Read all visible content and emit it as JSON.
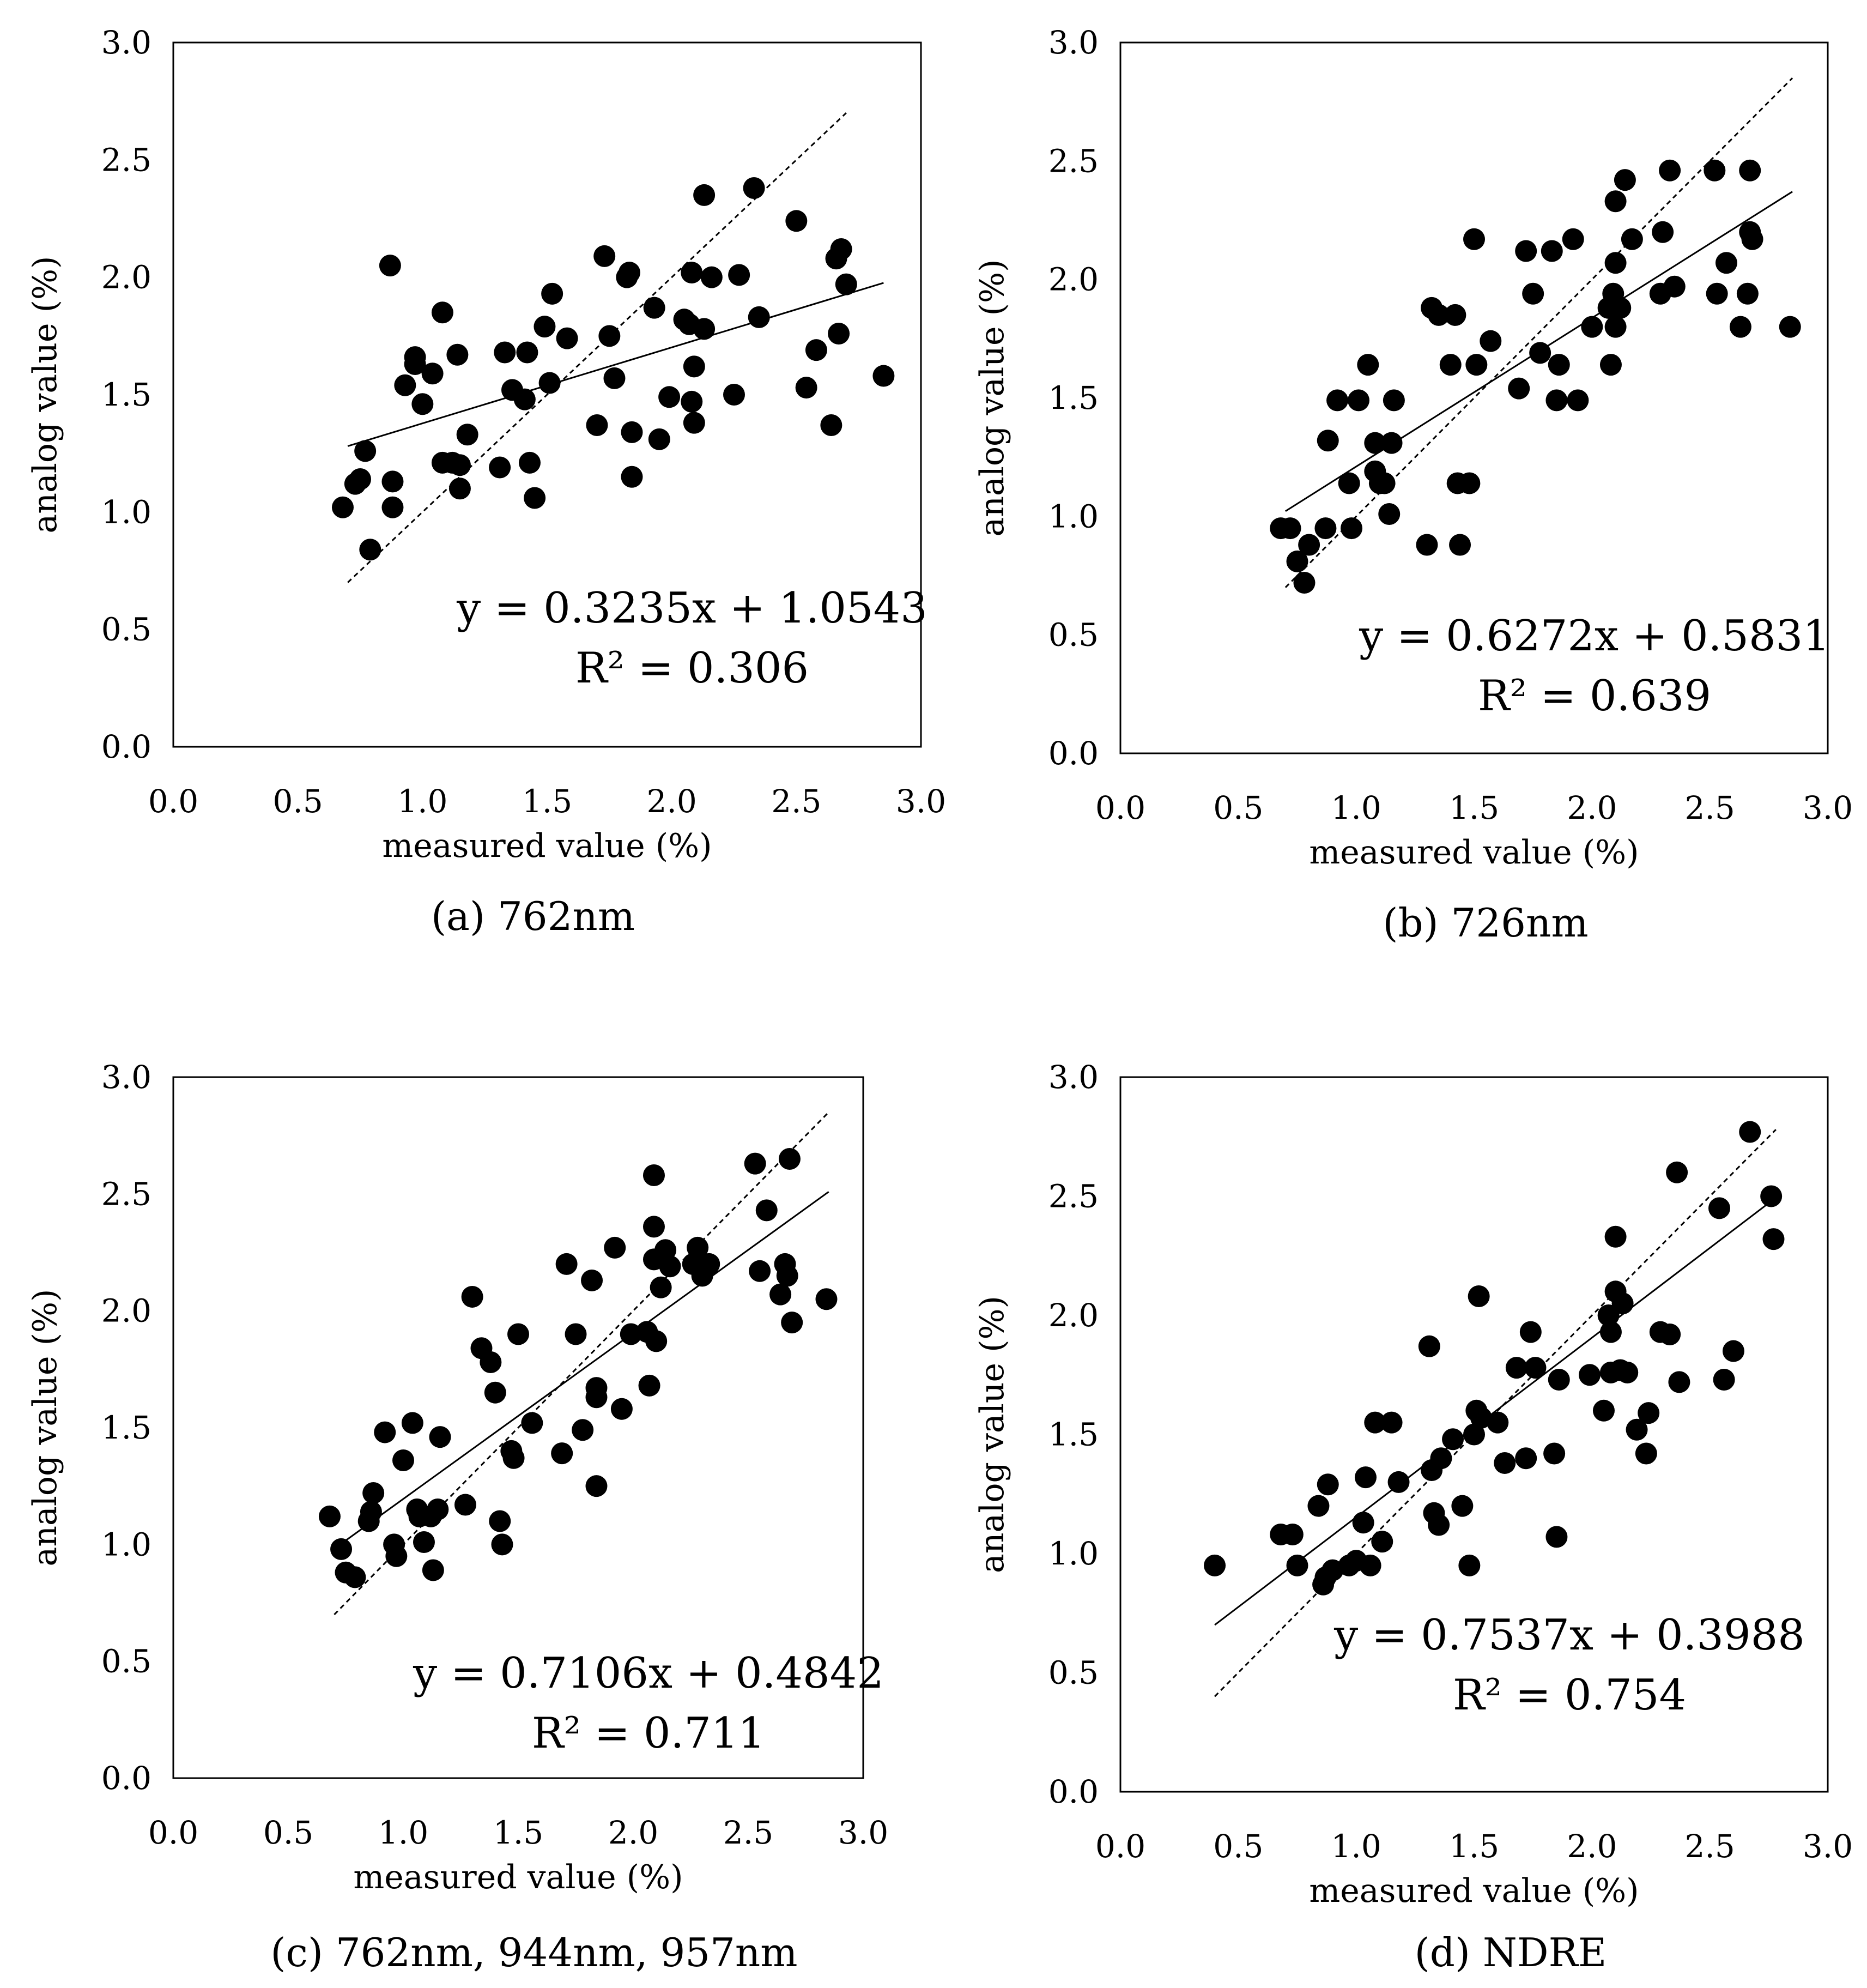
{
  "figure_captions": [
    "(a) 762nm",
    "(b) 726nm",
    "(c) 762nm, 944nm, 957nm",
    "(d) NDRE"
  ],
  "colors": {
    "points": "#000000",
    "frame": "#000000",
    "background": "#ffffff"
  },
  "chart_data": [
    {
      "type": "scatter",
      "caption": "(a) 762nm",
      "xlabel": "measured value (%)",
      "ylabel": "analog value (%)",
      "xlim": [
        0.0,
        3.0
      ],
      "ylim": [
        0.0,
        3.0
      ],
      "xticks": [
        "0.0",
        "0.5",
        "1.0",
        "1.5",
        "2.0",
        "2.5",
        "3.0"
      ],
      "yticks": [
        "0.0",
        "0.5",
        "1.0",
        "1.5",
        "2.0",
        "2.5",
        "3.0"
      ],
      "equation": "y = 0.3235x + 1.0543",
      "r_squared": "R² = 0.306",
      "fit": {
        "slope": 0.3235,
        "intercept": 1.0543,
        "x_range": [
          0.7,
          2.85
        ]
      },
      "reference_line": {
        "x_range": [
          0.7,
          2.7
        ]
      },
      "points": [
        [
          0.68,
          1.02
        ],
        [
          0.73,
          1.12
        ],
        [
          0.75,
          1.14
        ],
        [
          0.77,
          1.26
        ],
        [
          0.79,
          0.84
        ],
        [
          0.87,
          2.05
        ],
        [
          0.88,
          1.13
        ],
        [
          0.88,
          1.02
        ],
        [
          0.93,
          1.54
        ],
        [
          0.97,
          1.66
        ],
        [
          0.97,
          1.63
        ],
        [
          1.0,
          1.46
        ],
        [
          1.04,
          1.59
        ],
        [
          1.08,
          1.85
        ],
        [
          1.08,
          1.21
        ],
        [
          1.12,
          1.21
        ],
        [
          1.14,
          1.67
        ],
        [
          1.15,
          1.1
        ],
        [
          1.15,
          1.2
        ],
        [
          1.18,
          1.33
        ],
        [
          1.31,
          1.19
        ],
        [
          1.33,
          1.68
        ],
        [
          1.36,
          1.52
        ],
        [
          1.41,
          1.48
        ],
        [
          1.42,
          1.68
        ],
        [
          1.43,
          1.21
        ],
        [
          1.45,
          1.06
        ],
        [
          1.49,
          1.79
        ],
        [
          1.51,
          1.55
        ],
        [
          1.52,
          1.93
        ],
        [
          1.58,
          1.74
        ],
        [
          1.7,
          1.37
        ],
        [
          1.73,
          2.09
        ],
        [
          1.75,
          1.75
        ],
        [
          1.77,
          1.57
        ],
        [
          1.82,
          2.0
        ],
        [
          1.83,
          2.02
        ],
        [
          1.84,
          1.34
        ],
        [
          1.84,
          1.15
        ],
        [
          1.93,
          1.87
        ],
        [
          1.95,
          1.31
        ],
        [
          1.99,
          1.49
        ],
        [
          2.05,
          1.82
        ],
        [
          2.07,
          1.8
        ],
        [
          2.08,
          2.02
        ],
        [
          2.08,
          1.47
        ],
        [
          2.09,
          1.38
        ],
        [
          2.09,
          1.62
        ],
        [
          2.13,
          1.78
        ],
        [
          2.13,
          2.35
        ],
        [
          2.16,
          2.0
        ],
        [
          2.25,
          1.5
        ],
        [
          2.27,
          2.01
        ],
        [
          2.33,
          2.38
        ],
        [
          2.35,
          1.83
        ],
        [
          2.5,
          2.24
        ],
        [
          2.54,
          1.53
        ],
        [
          2.58,
          1.69
        ],
        [
          2.64,
          1.37
        ],
        [
          2.66,
          2.08
        ],
        [
          2.67,
          1.76
        ],
        [
          2.68,
          2.12
        ],
        [
          2.7,
          1.97
        ],
        [
          2.85,
          1.58
        ]
      ]
    },
    {
      "type": "scatter",
      "caption": "(b) 726nm",
      "xlabel": "measured value (%)",
      "ylabel": "analog value (%)",
      "xlim": [
        0.0,
        3.0
      ],
      "ylim": [
        0.0,
        3.0
      ],
      "xticks": [
        "0.0",
        "0.5",
        "1.0",
        "1.5",
        "2.0",
        "2.5",
        "3.0"
      ],
      "yticks": [
        "0.0",
        "0.5",
        "1.0",
        "1.5",
        "2.0",
        "2.5",
        "3.0"
      ],
      "equation": "y = 0.6272x + 0.5831",
      "r_squared": "R² = 0.639",
      "fit": {
        "slope": 0.6272,
        "intercept": 0.5831,
        "x_range": [
          0.7,
          2.85
        ]
      },
      "reference_line": {
        "x_range": [
          0.7,
          2.85
        ]
      },
      "points": [
        [
          0.68,
          0.95
        ],
        [
          0.72,
          0.95
        ],
        [
          0.75,
          0.81
        ],
        [
          0.78,
          0.72
        ],
        [
          0.8,
          0.88
        ],
        [
          0.87,
          0.95
        ],
        [
          0.88,
          1.32
        ],
        [
          0.92,
          1.49
        ],
        [
          0.97,
          1.14
        ],
        [
          0.98,
          0.95
        ],
        [
          1.01,
          1.49
        ],
        [
          1.05,
          1.64
        ],
        [
          1.08,
          1.31
        ],
        [
          1.08,
          1.19
        ],
        [
          1.1,
          1.14
        ],
        [
          1.12,
          1.14
        ],
        [
          1.14,
          1.01
        ],
        [
          1.15,
          1.31
        ],
        [
          1.16,
          1.49
        ],
        [
          1.3,
          0.88
        ],
        [
          1.32,
          1.88
        ],
        [
          1.35,
          1.85
        ],
        [
          1.4,
          1.64
        ],
        [
          1.42,
          1.85
        ],
        [
          1.43,
          1.14
        ],
        [
          1.44,
          0.88
        ],
        [
          1.48,
          1.14
        ],
        [
          1.5,
          2.17
        ],
        [
          1.51,
          1.64
        ],
        [
          1.57,
          1.74
        ],
        [
          1.69,
          1.54
        ],
        [
          1.72,
          2.12
        ],
        [
          1.75,
          1.94
        ],
        [
          1.78,
          1.69
        ],
        [
          1.83,
          2.12
        ],
        [
          1.85,
          1.49
        ],
        [
          1.86,
          1.64
        ],
        [
          1.92,
          2.17
        ],
        [
          1.94,
          1.49
        ],
        [
          2.0,
          1.8
        ],
        [
          2.07,
          1.88
        ],
        [
          2.08,
          1.64
        ],
        [
          2.09,
          1.94
        ],
        [
          2.1,
          2.33
        ],
        [
          2.1,
          2.07
        ],
        [
          2.1,
          1.8
        ],
        [
          2.12,
          1.88
        ],
        [
          2.14,
          2.42
        ],
        [
          2.17,
          2.17
        ],
        [
          2.29,
          1.94
        ],
        [
          2.3,
          2.2
        ],
        [
          2.33,
          2.46
        ],
        [
          2.35,
          1.97
        ],
        [
          2.52,
          2.46
        ],
        [
          2.53,
          1.94
        ],
        [
          2.57,
          2.07
        ],
        [
          2.63,
          1.8
        ],
        [
          2.66,
          1.94
        ],
        [
          2.67,
          2.2
        ],
        [
          2.67,
          2.46
        ],
        [
          2.68,
          2.17
        ],
        [
          2.84,
          1.8
        ]
      ]
    },
    {
      "type": "scatter",
      "caption": "(c) 762nm, 944nm, 957nm",
      "xlabel": "measured value (%)",
      "ylabel": "analog value (%)",
      "xlim": [
        0.0,
        3.0
      ],
      "ylim": [
        0.0,
        3.0
      ],
      "xticks": [
        "0.0",
        "0.5",
        "1.0",
        "1.5",
        "2.0",
        "2.5",
        "3.0"
      ],
      "yticks": [
        "0.0",
        "0.5",
        "1.0",
        "1.5",
        "2.0",
        "2.5",
        "3.0"
      ],
      "equation": "y = 0.7106x + 0.4842",
      "r_squared": "R² = 0.711",
      "fit": {
        "slope": 0.7106,
        "intercept": 0.4842,
        "x_range": [
          0.7,
          2.85
        ]
      },
      "reference_line": {
        "x_range": [
          0.7,
          2.85
        ]
      },
      "points": [
        [
          0.68,
          1.12
        ],
        [
          0.73,
          0.98
        ],
        [
          0.75,
          0.88
        ],
        [
          0.79,
          0.86
        ],
        [
          0.85,
          1.1
        ],
        [
          0.86,
          1.14
        ],
        [
          0.87,
          1.22
        ],
        [
          0.92,
          1.48
        ],
        [
          0.96,
          1.0
        ],
        [
          0.97,
          0.95
        ],
        [
          1.0,
          1.36
        ],
        [
          1.04,
          1.52
        ],
        [
          1.06,
          1.15
        ],
        [
          1.07,
          1.12
        ],
        [
          1.09,
          1.01
        ],
        [
          1.12,
          1.12
        ],
        [
          1.13,
          0.89
        ],
        [
          1.15,
          1.15
        ],
        [
          1.16,
          1.46
        ],
        [
          1.27,
          1.17
        ],
        [
          1.3,
          2.06
        ],
        [
          1.34,
          1.84
        ],
        [
          1.38,
          1.78
        ],
        [
          1.4,
          1.65
        ],
        [
          1.42,
          1.1
        ],
        [
          1.43,
          1.0
        ],
        [
          1.47,
          1.4
        ],
        [
          1.48,
          1.37
        ],
        [
          1.5,
          1.9
        ],
        [
          1.56,
          1.52
        ],
        [
          1.69,
          1.39
        ],
        [
          1.71,
          2.2
        ],
        [
          1.75,
          1.9
        ],
        [
          1.78,
          1.49
        ],
        [
          1.82,
          2.13
        ],
        [
          1.84,
          1.63
        ],
        [
          1.84,
          1.67
        ],
        [
          1.84,
          1.25
        ],
        [
          1.92,
          2.27
        ],
        [
          1.95,
          1.58
        ],
        [
          1.99,
          1.9
        ],
        [
          2.06,
          1.91
        ],
        [
          2.07,
          1.68
        ],
        [
          2.09,
          2.36
        ],
        [
          2.09,
          2.22
        ],
        [
          2.09,
          2.58
        ],
        [
          2.1,
          1.87
        ],
        [
          2.12,
          2.1
        ],
        [
          2.14,
          2.26
        ],
        [
          2.16,
          2.19
        ],
        [
          2.26,
          2.2
        ],
        [
          2.28,
          2.27
        ],
        [
          2.3,
          2.15
        ],
        [
          2.33,
          2.2
        ],
        [
          2.53,
          2.63
        ],
        [
          2.55,
          2.17
        ],
        [
          2.58,
          2.43
        ],
        [
          2.64,
          2.07
        ],
        [
          2.66,
          2.2
        ],
        [
          2.67,
          2.15
        ],
        [
          2.68,
          2.65
        ],
        [
          2.69,
          1.95
        ],
        [
          2.84,
          2.05
        ]
      ]
    },
    {
      "type": "scatter",
      "caption": "(d) NDRE",
      "xlabel": "measured value (%)",
      "ylabel": "analog value (%)",
      "xlim": [
        0.0,
        3.0
      ],
      "ylim": [
        0.0,
        3.0
      ],
      "xticks": [
        "0.0",
        "0.5",
        "1.0",
        "1.5",
        "2.0",
        "2.5",
        "3.0"
      ],
      "yticks": [
        "0.0",
        "0.5",
        "1.0",
        "1.5",
        "2.0",
        "2.5",
        "3.0"
      ],
      "equation": "y = 0.7537x + 0.3988",
      "r_squared": "R² = 0.754",
      "fit": {
        "slope": 0.7537,
        "intercept": 0.3988,
        "x_range": [
          0.4,
          2.78
        ]
      },
      "reference_line": {
        "x_range": [
          0.4,
          2.78
        ]
      },
      "points": [
        [
          0.4,
          0.95
        ],
        [
          0.68,
          1.08
        ],
        [
          0.73,
          1.08
        ],
        [
          0.75,
          0.95
        ],
        [
          0.84,
          1.2
        ],
        [
          0.86,
          0.87
        ],
        [
          0.87,
          0.9
        ],
        [
          0.88,
          1.29
        ],
        [
          0.9,
          0.93
        ],
        [
          0.97,
          0.95
        ],
        [
          1.0,
          0.97
        ],
        [
          1.03,
          1.13
        ],
        [
          1.04,
          1.32
        ],
        [
          1.06,
          0.95
        ],
        [
          1.08,
          1.55
        ],
        [
          1.11,
          1.05
        ],
        [
          1.15,
          1.55
        ],
        [
          1.18,
          1.3
        ],
        [
          1.31,
          1.87
        ],
        [
          1.32,
          1.35
        ],
        [
          1.33,
          1.17
        ],
        [
          1.35,
          1.12
        ],
        [
          1.36,
          1.4
        ],
        [
          1.41,
          1.48
        ],
        [
          1.45,
          1.2
        ],
        [
          1.48,
          0.95
        ],
        [
          1.5,
          1.5
        ],
        [
          1.51,
          1.6
        ],
        [
          1.52,
          2.08
        ],
        [
          1.53,
          1.57
        ],
        [
          1.6,
          1.55
        ],
        [
          1.63,
          1.38
        ],
        [
          1.68,
          1.78
        ],
        [
          1.72,
          1.4
        ],
        [
          1.74,
          1.93
        ],
        [
          1.76,
          1.78
        ],
        [
          1.84,
          1.42
        ],
        [
          1.85,
          1.07
        ],
        [
          1.86,
          1.73
        ],
        [
          1.99,
          1.75
        ],
        [
          2.05,
          1.6
        ],
        [
          2.07,
          2.0
        ],
        [
          2.08,
          1.76
        ],
        [
          2.08,
          1.93
        ],
        [
          2.1,
          2.1
        ],
        [
          2.1,
          2.33
        ],
        [
          2.12,
          1.77
        ],
        [
          2.13,
          2.05
        ],
        [
          2.15,
          1.76
        ],
        [
          2.19,
          1.52
        ],
        [
          2.23,
          1.42
        ],
        [
          2.24,
          1.59
        ],
        [
          2.29,
          1.93
        ],
        [
          2.33,
          1.92
        ],
        [
          2.36,
          2.6
        ],
        [
          2.37,
          1.72
        ],
        [
          2.54,
          2.45
        ],
        [
          2.56,
          1.73
        ],
        [
          2.6,
          1.85
        ],
        [
          2.67,
          2.77
        ],
        [
          2.76,
          2.5
        ],
        [
          2.77,
          2.32
        ]
      ]
    }
  ]
}
